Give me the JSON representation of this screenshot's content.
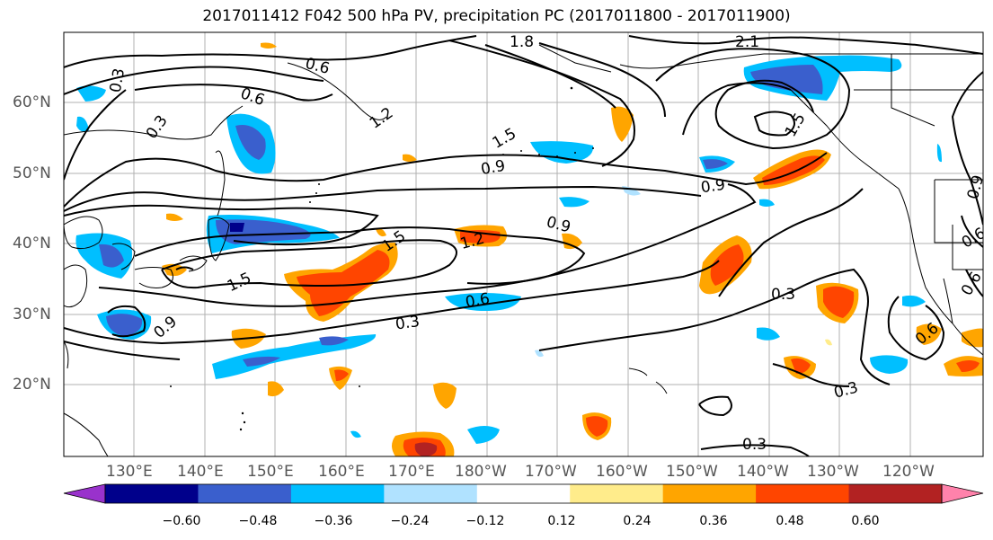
{
  "title": "2017011412 F042 500 hPa PV, precipitation PC (2017011800 - 2017011900)",
  "lat_labels": [
    "60°N",
    "50°N",
    "40°N",
    "30°N",
    "20°N"
  ],
  "lon_labels": [
    "130°E",
    "140°E",
    "150°E",
    "160°E",
    "170°E",
    "180°W",
    "170°W",
    "160°W",
    "150°W",
    "140°W",
    "130°W",
    "120°W"
  ],
  "contour_labels": [
    "0.3",
    "0.6",
    "0.9",
    "1.2",
    "1.5",
    "1.8",
    "2.1"
  ],
  "colorbar": {
    "ticks": [
      "−0.60",
      "−0.48",
      "−0.36",
      "−0.24",
      "−0.12",
      "0.12",
      "0.24",
      "0.36",
      "0.48",
      "0.60"
    ],
    "colors": [
      "#9932cc",
      "#00008b",
      "#3a5fcd",
      "#00bfff",
      "#b0e2ff",
      "#ffffff",
      "#ffec8b",
      "#ffa500",
      "#ff4500",
      "#b22222",
      "#ff82ab"
    ]
  },
  "map_colors": {
    "neg_light": "#00bfff",
    "neg_dark": "#3a5fcd",
    "neg_darkest": "#00008b",
    "pos_light": "#ffa500",
    "pos_mid": "#ff4500",
    "pos_dark": "#b22222",
    "pos_pale": "#ffec8b"
  }
}
